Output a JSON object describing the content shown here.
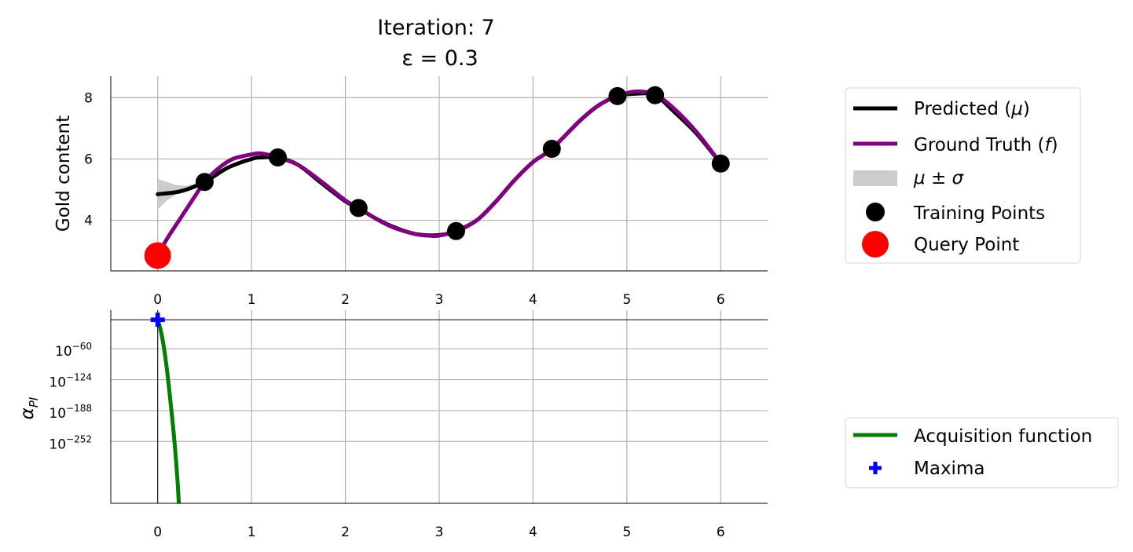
{
  "chart_data": [
    {
      "type": "line",
      "title": "Iteration: 7",
      "subtitle": "ε = 0.3",
      "xlabel": "",
      "ylabel": "Gold content",
      "xlim": [
        -0.5,
        6.5
      ],
      "ylim": [
        2.35,
        8.7
      ],
      "xticks": [
        0,
        1,
        2,
        3,
        4,
        5,
        6
      ],
      "yticks": [
        4,
        6,
        8
      ],
      "grid": true,
      "legend_position": "right",
      "series": [
        {
          "name": "Predicted (μ)",
          "legend_label": "Predicted (",
          "legend_symbol": "μ",
          "legend_suffix": ")",
          "color": "#000000",
          "x": [
            0.0,
            0.25,
            0.5,
            0.75,
            1.0,
            1.1,
            1.28,
            1.5,
            1.75,
            2.0,
            2.14,
            2.3,
            2.5,
            2.75,
            3.0,
            3.18,
            3.4,
            3.6,
            3.8,
            4.0,
            4.2,
            4.5,
            4.7,
            4.9,
            5.1,
            5.3,
            5.5,
            5.75,
            6.0
          ],
          "y": [
            4.85,
            4.95,
            5.25,
            5.72,
            6.0,
            6.05,
            6.05,
            5.8,
            5.2,
            4.62,
            4.4,
            4.1,
            3.8,
            3.55,
            3.52,
            3.65,
            4.0,
            4.6,
            5.3,
            5.9,
            6.33,
            7.25,
            7.75,
            8.05,
            8.13,
            8.08,
            7.55,
            6.8,
            5.85
          ]
        },
        {
          "name": "Ground Truth (f)",
          "legend_label": "Ground Truth (",
          "legend_symbol": "f",
          "legend_suffix": ")",
          "color": "#800080",
          "x": [
            0.0,
            0.1,
            0.25,
            0.4,
            0.5,
            0.65,
            0.8,
            1.0,
            1.1,
            1.28,
            1.5,
            1.75,
            2.0,
            2.14,
            2.3,
            2.5,
            2.75,
            2.9,
            3.0,
            3.18,
            3.4,
            3.6,
            3.8,
            4.0,
            4.2,
            4.5,
            4.7,
            4.9,
            5.1,
            5.3,
            5.5,
            5.75,
            6.0
          ],
          "y": [
            2.85,
            3.4,
            4.1,
            4.8,
            5.25,
            5.7,
            6.0,
            6.15,
            6.18,
            6.05,
            5.8,
            5.25,
            4.65,
            4.4,
            4.1,
            3.78,
            3.55,
            3.5,
            3.5,
            3.65,
            4.0,
            4.6,
            5.3,
            5.9,
            6.33,
            7.25,
            7.75,
            8.05,
            8.2,
            8.1,
            7.65,
            6.85,
            5.85
          ]
        }
      ],
      "confidence_band": {
        "name": "μ ± σ",
        "legend_symbol": "μ ± σ",
        "color": "#cccccc",
        "x": [
          0.0,
          0.1,
          0.2,
          0.3,
          0.4,
          0.5
        ],
        "upper": [
          5.35,
          5.25,
          5.15,
          5.12,
          5.2,
          5.25
        ],
        "lower": [
          4.35,
          4.65,
          4.85,
          5.0,
          5.12,
          5.25
        ]
      },
      "training_points": {
        "name": "Training Points",
        "color": "#000000",
        "x": [
          0.5,
          1.28,
          2.14,
          3.18,
          4.2,
          4.9,
          5.3,
          6.0
        ],
        "y": [
          5.25,
          6.05,
          4.4,
          3.65,
          6.33,
          8.05,
          8.08,
          5.85
        ]
      },
      "query_point": {
        "name": "Query Point",
        "color": "#ff0000",
        "x": 0.0,
        "y": 2.85
      }
    },
    {
      "type": "line",
      "xlabel": "",
      "ylabel": "α",
      "ylabel_sub": "PI",
      "y_scale": "log",
      "xlim": [
        -0.5,
        6.5
      ],
      "ylim_log10": [
        -380,
        20
      ],
      "xticks": [
        0,
        1,
        2,
        3,
        4,
        5,
        6
      ],
      "ytick_exponents": [
        -60,
        -124,
        -188,
        -252
      ],
      "ytick_base": "10",
      "grid": true,
      "legend_position": "right",
      "hline_log10": 0,
      "vline_x": 0,
      "series": [
        {
          "name": "Acquisition function",
          "color": "#008000",
          "x": [
            0.0,
            0.03,
            0.06,
            0.09,
            0.12,
            0.15,
            0.18,
            0.21,
            0.225
          ],
          "y_log10": [
            0,
            -20,
            -50,
            -90,
            -140,
            -195,
            -255,
            -330,
            -380
          ]
        }
      ],
      "maxima": {
        "name": "Maxima",
        "color": "#0000ff",
        "x": 0.0,
        "y_log10": 0
      }
    }
  ]
}
